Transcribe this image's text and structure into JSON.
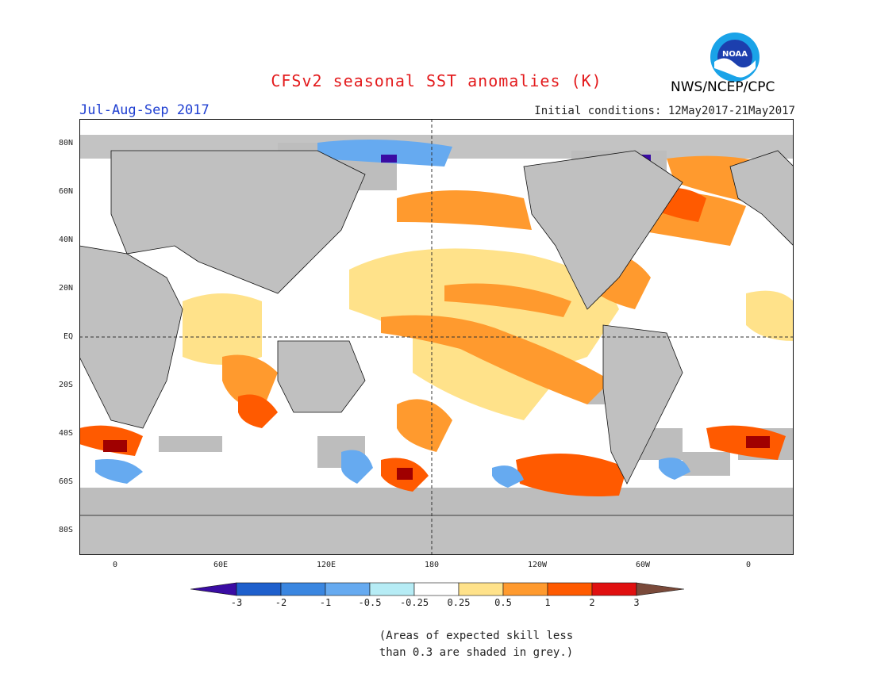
{
  "header": {
    "title": "CFSv2 seasonal SST anomalies (K)",
    "period": "Jul-Aug-Sep 2017",
    "initial_conditions": "Initial conditions: 12May2017-21May2017",
    "agency": "NWS/NCEP/CPC",
    "logo_text": "NOAA"
  },
  "map": {
    "lat_labels": [
      "80N",
      "60N",
      "40N",
      "20N",
      "EQ",
      "20S",
      "40S",
      "60S",
      "80S"
    ],
    "lon_labels": [
      "0",
      "60E",
      "120E",
      "180",
      "120W",
      "60W",
      "0"
    ],
    "colors": {
      "land": "#c0c0c0",
      "skill_mask": "#bdbdbd",
      "ocean_neutral": "#ffffff"
    }
  },
  "colorbar": {
    "tick_labels": [
      "-3",
      "-2",
      "-1",
      "-0.5",
      "-0.25",
      "0.25",
      "0.5",
      "1",
      "2",
      "3"
    ],
    "colors": [
      "#3a0ca3",
      "#1e5fcc",
      "#3a86e0",
      "#66aaf0",
      "#b6ecf5",
      "#ffffff",
      "#ffe28a",
      "#ff9a2e",
      "#ff5a00",
      "#e01010",
      "#a00000",
      "#7a4a3a"
    ]
  },
  "note": {
    "line1": "(Areas of expected skill less",
    "line2": "than 0.3 are shaded in grey.)"
  }
}
